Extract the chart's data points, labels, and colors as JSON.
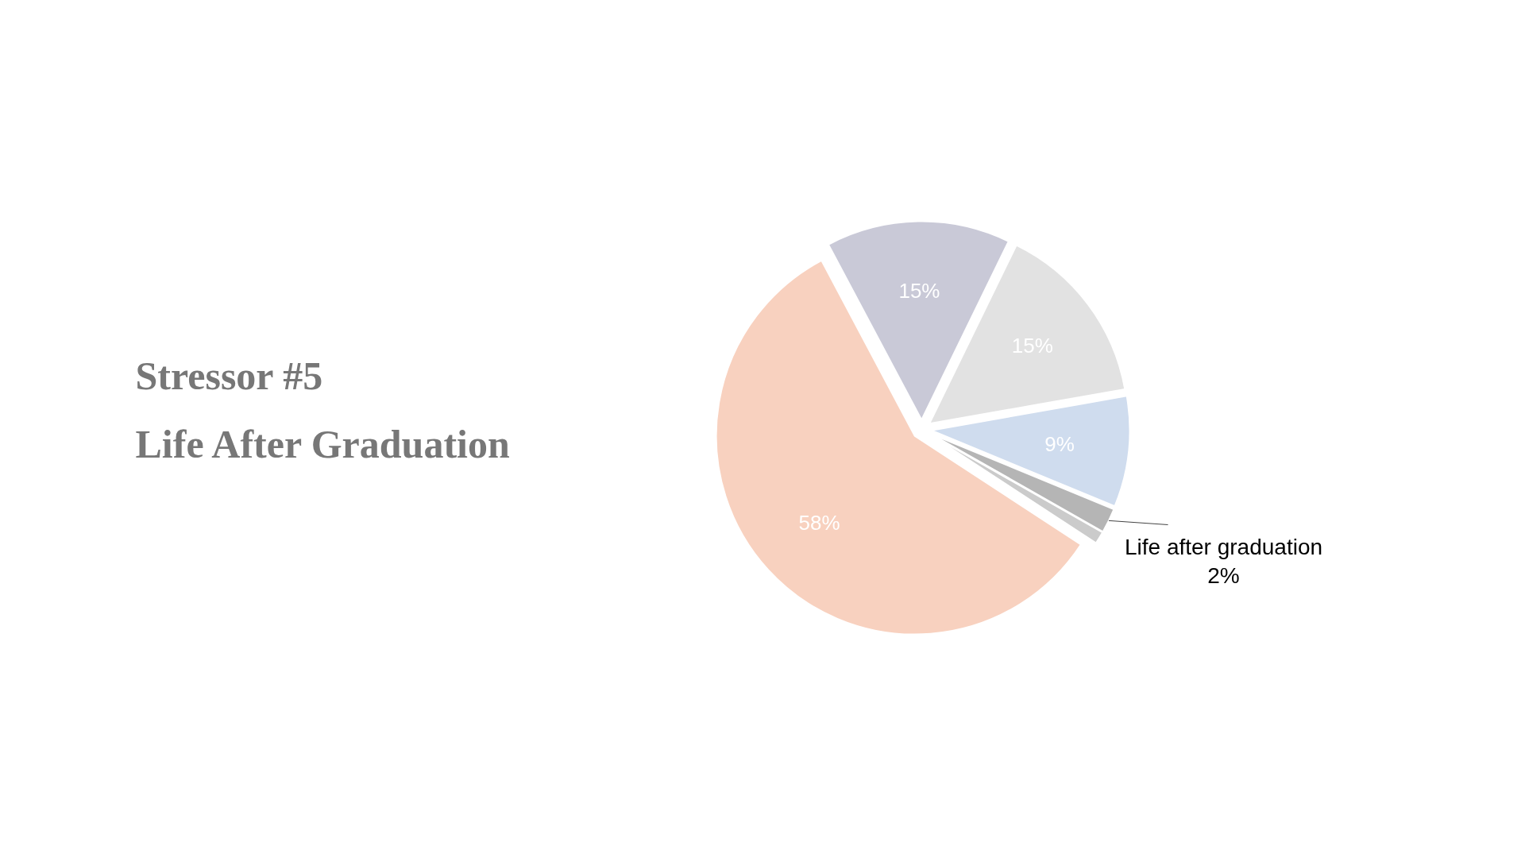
{
  "chart_data": {
    "type": "pie",
    "title": "Stressor #5",
    "subtitle": "Life After Graduation",
    "categories": [
      null,
      null,
      null,
      "Life after graduation",
      null,
      null
    ],
    "values": [
      15,
      15,
      9,
      2,
      1,
      58
    ],
    "value_labels": [
      "15%",
      "15%",
      "9%",
      "2%",
      null,
      "58%"
    ],
    "colors": [
      "#c9c9d7",
      "#e2e2e2",
      "#cfdcee",
      "#b5b5b5",
      "#cbcbcb",
      "#f8d1bf"
    ]
  }
}
